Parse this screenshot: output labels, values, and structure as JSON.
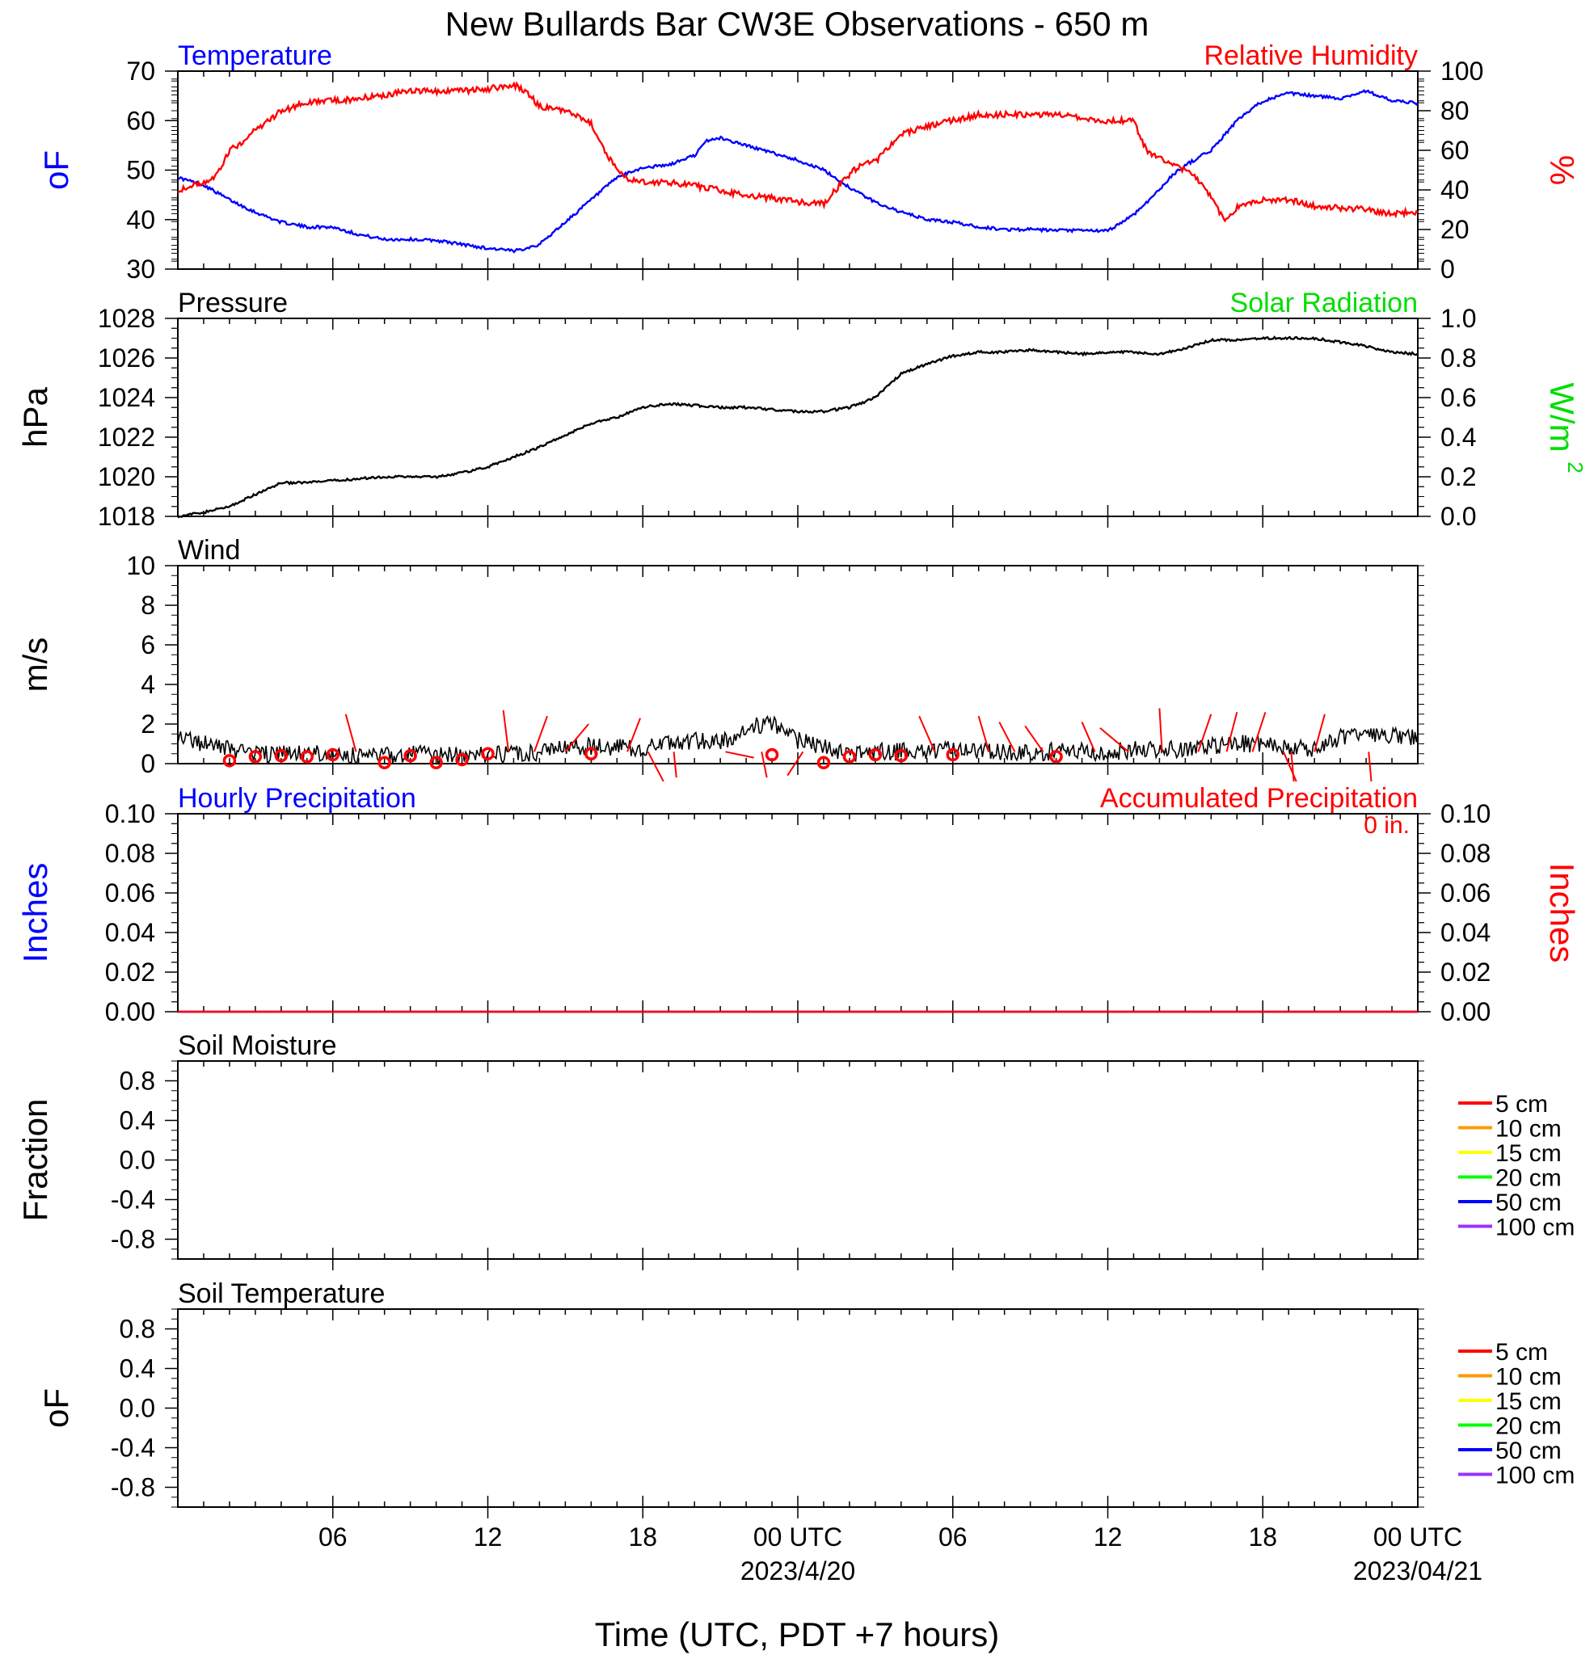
{
  "chart_data": {
    "type": "multi-panel time series",
    "title": "New Bullards Bar CW3E Observations - 650 m",
    "xlabel": "Time (UTC, PDT +7 hours)",
    "x_ticks": [
      "06",
      "12",
      "18",
      "00 UTC",
      "06",
      "12",
      "18",
      "00 UTC"
    ],
    "x_dates": [
      "2023/4/20",
      "2023/04/21"
    ],
    "x_range_hours": [
      0,
      48
    ],
    "panels": [
      {
        "name": "temperature_humidity",
        "type": "line",
        "left_label": "Temperature",
        "right_label": "Relative Humidity",
        "left_units": "oF",
        "right_units": "%",
        "left_ticks": [
          "30",
          "40",
          "50",
          "60",
          "70"
        ],
        "right_ticks": [
          "0",
          "20",
          "40",
          "60",
          "80",
          "100"
        ],
        "left_ylim": [
          30,
          70
        ],
        "right_ylim": [
          0,
          100
        ],
        "series": [
          {
            "name": "Temperature",
            "color": "#0000ff",
            "axis": "left",
            "x": [
              0,
              1,
              2,
              3,
              4,
              5,
              6,
              7,
              8,
              9,
              10,
              11,
              12,
              12.5,
              13,
              14,
              15,
              16,
              17,
              18,
              19,
              20,
              20.5,
              21,
              22,
              23,
              24,
              25,
              26,
              27,
              28,
              29,
              30,
              31,
              32,
              33,
              34,
              35,
              36,
              37,
              38,
              38.5,
              39,
              40,
              41,
              42,
              43,
              44,
              45,
              46,
              47,
              48
            ],
            "y": [
              48.5,
              47,
              44,
              41.5,
              39.5,
              38.5,
              38.5,
              37,
              36,
              36,
              35.8,
              35,
              34.2,
              34,
              33.6,
              35,
              39.5,
              44,
              48.5,
              50.5,
              51,
              53,
              56,
              56.5,
              55,
              53.5,
              52,
              50,
              46.5,
              43.5,
              41.5,
              40,
              39.5,
              38.5,
              38,
              38,
              37.8,
              37.8,
              37.7,
              41,
              46,
              49,
              51,
              54,
              60,
              64,
              65.5,
              65,
              64.5,
              66,
              64,
              63.5
            ]
          },
          {
            "name": "Relative Humidity",
            "color": "#ff0000",
            "axis": "right",
            "x": [
              0,
              1,
              1.5,
              2,
              2.5,
              3,
              4,
              5,
              6,
              7,
              8,
              9,
              10,
              11,
              12,
              13,
              13.5,
              14,
              15,
              16,
              16.5,
              17,
              17.5,
              18,
              19,
              20,
              21,
              22,
              23,
              24,
              25,
              26,
              26.5,
              27,
              28,
              29,
              30,
              31,
              32,
              33,
              34,
              35,
              36,
              37,
              37.5,
              38,
              39,
              39.5,
              40,
              40.5,
              41,
              42,
              43,
              44,
              45,
              46,
              47,
              48
            ],
            "y": [
              40,
              44,
              47,
              60,
              64,
              70,
              80,
              84,
              85,
              86,
              88,
              90,
              90,
              90,
              91,
              93,
              90,
              82,
              80,
              74,
              60,
              50,
              45,
              44,
              44,
              42,
              40,
              37,
              36,
              34,
              33,
              48,
              53,
              54,
              68,
              72,
              75,
              78,
              78,
              78,
              78,
              76,
              75,
              75,
              60,
              56,
              50,
              45,
              37,
              24,
              31,
              35,
              35,
              32,
              31,
              30,
              28,
              29
            ]
          }
        ]
      },
      {
        "name": "pressure_solar",
        "type": "line",
        "left_label": "Pressure",
        "right_label": "Solar Radiation",
        "left_units": "hPa",
        "right_units": "W/m",
        "right_units_sup": "2",
        "left_ticks": [
          "1018",
          "1020",
          "1022",
          "1024",
          "1026",
          "1028"
        ],
        "right_ticks": [
          "0.0",
          "0.2",
          "0.4",
          "0.6",
          "0.8",
          "1.0"
        ],
        "left_ylim": [
          1018,
          1028
        ],
        "right_ylim": [
          0,
          1
        ],
        "series": [
          {
            "name": "Pressure",
            "color": "#000000",
            "axis": "left",
            "x": [
              0,
              1,
              2,
              3,
              4,
              5,
              6,
              7,
              8,
              9,
              10,
              11,
              12,
              13,
              14,
              15,
              16,
              17,
              18,
              19,
              20,
              21,
              22,
              23,
              24,
              25,
              26,
              27,
              28,
              29,
              30,
              31,
              32,
              33,
              34,
              35,
              36,
              37,
              38,
              39,
              40,
              41,
              42,
              43,
              44,
              45,
              46,
              47,
              48
            ],
            "y": [
              1018.0,
              1018.2,
              1018.5,
              1019.1,
              1019.7,
              1019.7,
              1019.8,
              1019.9,
              1020.0,
              1020.0,
              1020.0,
              1020.2,
              1020.5,
              1021.0,
              1021.5,
              1022.1,
              1022.7,
              1023.0,
              1023.5,
              1023.7,
              1023.6,
              1023.5,
              1023.5,
              1023.4,
              1023.3,
              1023.3,
              1023.5,
              1024.0,
              1025.2,
              1025.7,
              1026.1,
              1026.3,
              1026.3,
              1026.4,
              1026.3,
              1026.2,
              1026.3,
              1026.3,
              1026.2,
              1026.5,
              1026.9,
              1026.9,
              1027.0,
              1027.0,
              1027.0,
              1026.8,
              1026.6,
              1026.3,
              1026.2
            ]
          }
        ]
      },
      {
        "name": "wind",
        "type": "line",
        "left_label": "Wind",
        "left_units": "m/s",
        "left_ticks": [
          "0",
          "2",
          "4",
          "6",
          "8",
          "10"
        ],
        "left_ylim": [
          0,
          10
        ],
        "series": [
          {
            "name": "Wind speed",
            "color": "#000000",
            "axis": "left",
            "x": [
              0,
              1,
              2,
              3,
              4,
              5,
              6,
              7,
              8,
              9,
              10,
              11,
              12,
              13,
              14,
              15,
              16,
              17,
              18,
              19,
              20,
              21,
              22,
              23,
              24,
              25,
              26,
              27,
              28,
              29,
              30,
              31,
              32,
              33,
              34,
              35,
              36,
              37,
              38,
              39,
              40,
              41,
              42,
              43,
              44,
              45,
              46,
              47,
              48
            ],
            "y": [
              1.5,
              1.0,
              0.7,
              0.5,
              0.5,
              0.5,
              0.5,
              0.4,
              0.4,
              0.5,
              0.4,
              0.4,
              0.4,
              0.5,
              0.6,
              0.8,
              0.9,
              0.8,
              0.8,
              1.0,
              1.2,
              1.0,
              1.8,
              2.0,
              1.2,
              0.8,
              0.5,
              0.6,
              0.6,
              0.6,
              0.7,
              0.7,
              0.6,
              0.6,
              0.6,
              0.6,
              0.6,
              0.7,
              0.7,
              0.7,
              0.9,
              1.0,
              1.0,
              0.8,
              0.7,
              1.3,
              1.5,
              1.4,
              1.3
            ]
          }
        ],
        "calm_marker_hours": [
          2,
          3,
          4,
          5,
          6,
          8,
          9,
          10,
          11,
          12,
          16,
          23,
          25,
          26,
          27,
          28,
          30,
          34
        ],
        "calm_marker_values": [
          0.15,
          0.35,
          0.4,
          0.35,
          0.45,
          0.05,
          0.4,
          0.05,
          0.2,
          0.5,
          0.5,
          0.45,
          0.05,
          0.35,
          0.45,
          0.4,
          0.45,
          0.35
        ],
        "wind_sticks": [
          {
            "hour": 6.9,
            "dx": -0.4,
            "dy": 1.9
          },
          {
            "hour": 12.8,
            "dx": -0.2,
            "dy": 2.1
          },
          {
            "hour": 13.8,
            "dx": 0.5,
            "dy": 1.8
          },
          {
            "hour": 15.0,
            "dx": 0.9,
            "dy": 1.4
          },
          {
            "hour": 17.4,
            "dx": 0.5,
            "dy": 1.7
          },
          {
            "hour": 18.2,
            "dx": 0.6,
            "dy": -1.5
          },
          {
            "hour": 19.2,
            "dx": 0.1,
            "dy": -1.3
          },
          {
            "hour": 21.2,
            "dx": 1.1,
            "dy": -0.3
          },
          {
            "hour": 22.6,
            "dx": 0.2,
            "dy": -1.3
          },
          {
            "hour": 24.2,
            "dx": -0.6,
            "dy": -1.2
          },
          {
            "hour": 29.3,
            "dx": -0.6,
            "dy": 1.8
          },
          {
            "hour": 31.4,
            "dx": -0.4,
            "dy": 1.8
          },
          {
            "hour": 32.4,
            "dx": -0.6,
            "dy": 1.5
          },
          {
            "hour": 33.5,
            "dx": -0.7,
            "dy": 1.3
          },
          {
            "hour": 35.5,
            "dx": -0.5,
            "dy": 1.5
          },
          {
            "hour": 36.8,
            "dx": -1.1,
            "dy": 1.2
          },
          {
            "hour": 38.1,
            "dx": -0.1,
            "dy": 2.2
          },
          {
            "hour": 39.5,
            "dx": 0.5,
            "dy": 1.9
          },
          {
            "hour": 40.6,
            "dx": 0.4,
            "dy": 2.0
          },
          {
            "hour": 41.6,
            "dx": 0.5,
            "dy": 2.0
          },
          {
            "hour": 42.8,
            "dx": 0.5,
            "dy": -1.5
          },
          {
            "hour": 43.1,
            "dx": 0.1,
            "dy": -1.5
          },
          {
            "hour": 44.0,
            "dx": 0.4,
            "dy": 1.9
          },
          {
            "hour": 46.1,
            "dx": 0.1,
            "dy": -1.5
          }
        ]
      },
      {
        "name": "precipitation",
        "type": "line",
        "left_label": "Hourly Precipitation",
        "right_label": "Accumulated Precipitation",
        "accumulation_text": "0 in.",
        "left_units": "Inches",
        "right_units": "Inches",
        "left_ticks": [
          "0.00",
          "0.02",
          "0.04",
          "0.06",
          "0.08",
          "0.10"
        ],
        "right_ticks": [
          "0.00",
          "0.02",
          "0.04",
          "0.06",
          "0.08",
          "0.10"
        ],
        "left_ylim": [
          0,
          0.1
        ],
        "right_ylim": [
          0,
          0.1
        ],
        "series": [
          {
            "name": "Hourly Precipitation",
            "color": "#0000ff",
            "axis": "left",
            "x": [
              0,
              48
            ],
            "y": [
              0,
              0
            ]
          },
          {
            "name": "Accumulated Precipitation",
            "color": "#ff0000",
            "axis": "right",
            "x": [
              0,
              48
            ],
            "y": [
              0,
              0
            ]
          }
        ]
      },
      {
        "name": "soil_moisture",
        "type": "line",
        "left_label": "Soil Moisture",
        "left_units": "Fraction",
        "left_ticks": [
          "-0.8",
          "-0.4",
          "0.0",
          "0.4",
          "0.8"
        ],
        "left_ylim": [
          -1,
          1
        ],
        "legend": [
          {
            "label": "5 cm",
            "color": "#ff0000"
          },
          {
            "label": "10 cm",
            "color": "#ff9900"
          },
          {
            "label": "15 cm",
            "color": "#ffff00"
          },
          {
            "label": "20 cm",
            "color": "#00ff00"
          },
          {
            "label": "50 cm",
            "color": "#0000ff"
          },
          {
            "label": "100 cm",
            "color": "#9933ff"
          }
        ]
      },
      {
        "name": "soil_temperature",
        "type": "line",
        "left_label": "Soil Temperature",
        "left_units": "oF",
        "left_ticks": [
          "-0.8",
          "-0.4",
          "0.0",
          "0.4",
          "0.8"
        ],
        "left_ylim": [
          -1,
          1
        ],
        "legend": [
          {
            "label": "5 cm",
            "color": "#ff0000"
          },
          {
            "label": "10 cm",
            "color": "#ff9900"
          },
          {
            "label": "15 cm",
            "color": "#ffff00"
          },
          {
            "label": "20 cm",
            "color": "#00ff00"
          },
          {
            "label": "50 cm",
            "color": "#0000ff"
          },
          {
            "label": "100 cm",
            "color": "#9933ff"
          }
        ]
      }
    ]
  }
}
